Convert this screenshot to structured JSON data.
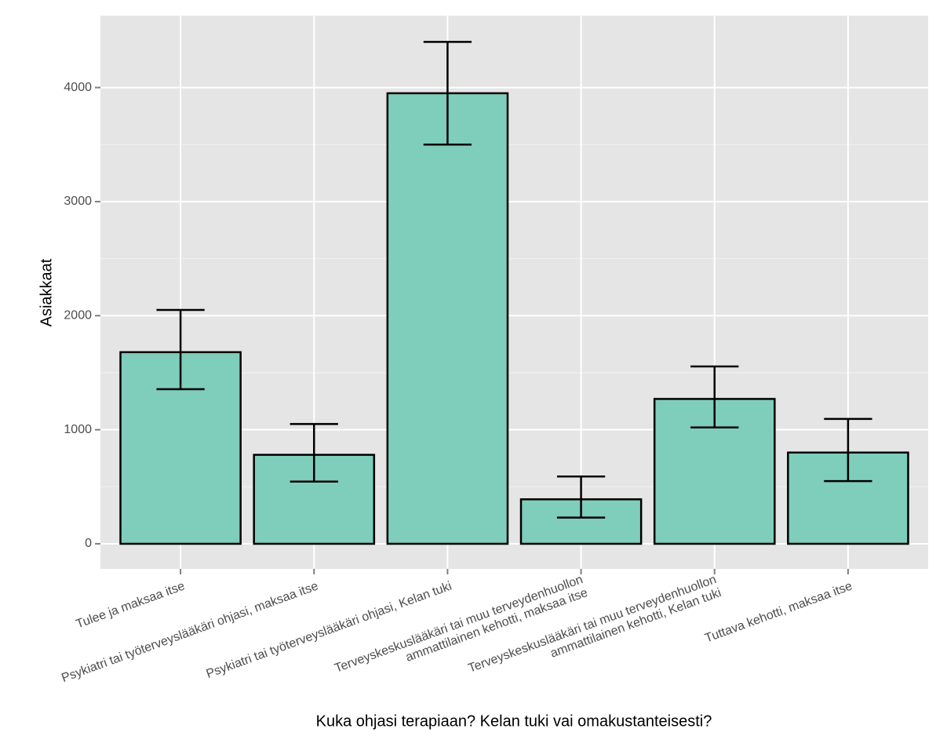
{
  "chart_data": {
    "type": "bar",
    "x_label": "Kuka ohjasi terapiaan? Kelan tuki vai omakustanteisesti?",
    "y_label": "Asiakkaat",
    "categories": [
      "Tulee ja maksaa itse",
      "Psykiatri tai työterveyslääkäri ohjasi, maksaa itse",
      "Psykiatri tai työterveyslääkäri ohjasi, Kelan tuki",
      "Terveyskeskuslääkäri tai muu terveydenhuollon\nammattilainen kehotti, maksaa itse",
      "Terveyskeskuslääkäri tai muu terveydenhuollon\nammattilainen kehotti, Kelan tuki",
      "Tuttava kehotti, maksaa itse"
    ],
    "values": [
      1680,
      780,
      3950,
      390,
      1270,
      800
    ],
    "error_low": [
      1355,
      545,
      3500,
      230,
      1020,
      550
    ],
    "error_high": [
      2050,
      1050,
      4400,
      590,
      1555,
      1095
    ],
    "color": "#7fcdbb",
    "ylim": [
      -220,
      4630
    ],
    "yticks": [
      0,
      1000,
      2000,
      3000,
      4000
    ],
    "grid": true
  }
}
